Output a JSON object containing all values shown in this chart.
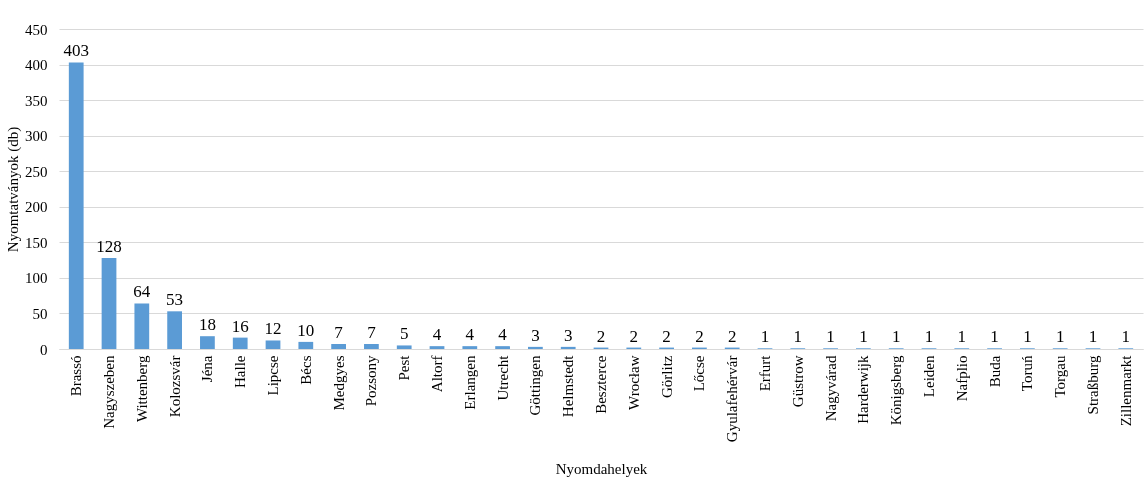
{
  "chart_data": {
    "type": "bar",
    "categories": [
      "Brassó",
      "Nagyszeben",
      "Wittenberg",
      "Kolozsvár",
      "Jéna",
      "Halle",
      "Lipcse",
      "Bécs",
      "Medgyes",
      "Pozsony",
      "Pest",
      "Altorf",
      "Erlangen",
      "Utrecht",
      "Göttingen",
      "Helmstedt",
      "Beszterce",
      "Wrocław",
      "Görlitz",
      "Lőcse",
      "Gyulafehérvár",
      "Erfurt",
      "Güstrow",
      "Nagyvárad",
      "Harderwijk",
      "Königsberg",
      "Leiden",
      "Nafplio",
      "Buda",
      "Toruń",
      "Torgau",
      "Straßburg",
      "Zillenmarkt"
    ],
    "values": [
      403,
      128,
      64,
      53,
      18,
      16,
      12,
      10,
      7,
      7,
      5,
      4,
      4,
      4,
      3,
      3,
      2,
      2,
      2,
      2,
      2,
      1,
      1,
      1,
      1,
      1,
      1,
      1,
      1,
      1,
      1,
      1,
      1
    ],
    "color": "#5b9bd5",
    "xlabel": "Nyomdahelyek",
    "ylabel": "Nyomtatványok (db)",
    "ylim": [
      0,
      450
    ],
    "yticks": [
      0,
      50,
      100,
      150,
      200,
      250,
      300,
      350,
      400,
      450
    ],
    "grid": "y",
    "data_labels": true
  }
}
